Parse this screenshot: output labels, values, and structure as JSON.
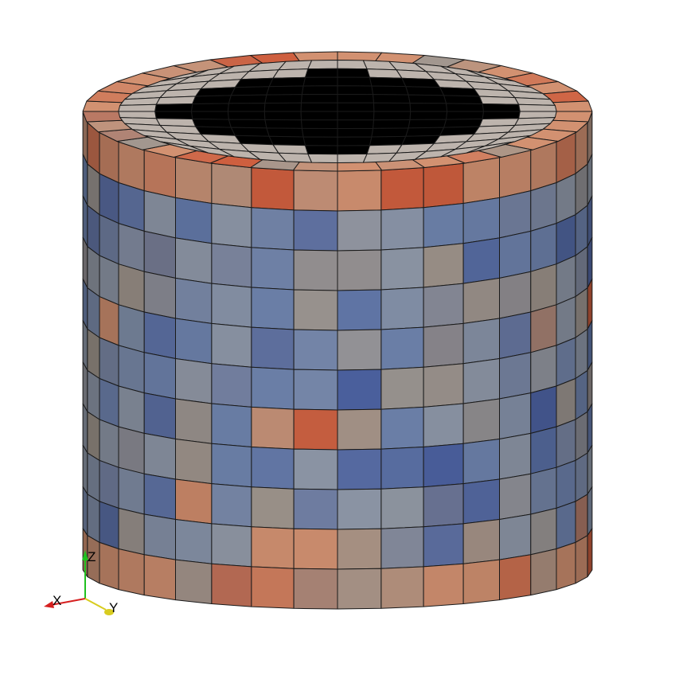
{
  "viewport": {
    "background": "#ffffff",
    "object": "cylinder-hex-mesh",
    "edge_color": "#1a1a1a",
    "palette": {
      "cool_dark": "#4a5f9c",
      "cool": "#6b7fa8",
      "neutral_cool": "#8a93a3",
      "neutral_warm": "#9a9088",
      "warm": "#c88a6c",
      "hot": "#c45a3c"
    }
  },
  "orientation_axes": {
    "x_label": "X",
    "y_label": "Y",
    "z_label": "Z",
    "x_color": "#d62020",
    "y_color": "#d8cc20",
    "z_color": "#20c020"
  }
}
